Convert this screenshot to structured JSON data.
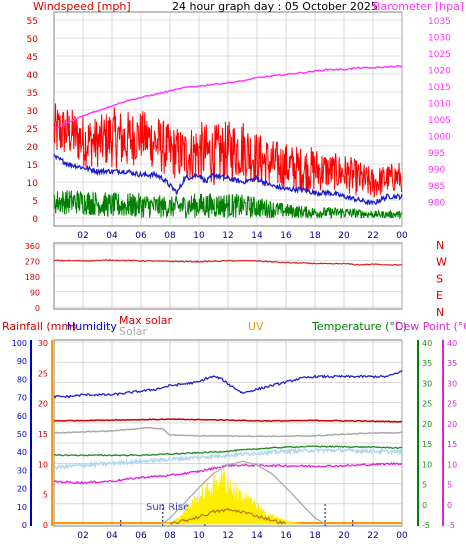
{
  "header": {
    "title": "24 hour graph day : 05 October 2025",
    "left_axis_label": "Windspeed [mph]",
    "right_axis_label": "Barometer [hpa]"
  },
  "bottom_header": {
    "rainfall": "Rainfall (mm)",
    "humidity": "Humidity",
    "max_solar": "Max solar",
    "solar": "Solar",
    "uv": "UV",
    "temperature": "Temperature (°C)",
    "dew_point": "Dew Point (°C)"
  },
  "direction_labels": [
    "N",
    "W",
    "S",
    "E",
    "N"
  ],
  "annotations": {
    "sun_rise": "Sun Rise"
  },
  "colors": {
    "wind_gust": "#ff0000",
    "wind_avg": "#1e1ecc",
    "wind_low": "#008000",
    "barometer": "#ff33ff",
    "direction": "#dd2222",
    "humidity": "#2222cc",
    "max_solar": "#aaaaaa",
    "solar": "#ffee00",
    "uv": "#b87700",
    "temperature": "#228b22",
    "temperature_high": "#b0d8f0",
    "dew_point": "#dd22dd",
    "rain": "#ff9900",
    "axis_left": "#cc0000",
    "axis_right": "#ff33ff",
    "axis_rain": "#0000cc",
    "panel_bg": "#ffffff",
    "grid": "#c0c0c0",
    "frame": "#808080"
  },
  "chart_data": [
    {
      "type": "line",
      "name": "wind_and_pressure",
      "title": "24 hour graph day : 05 October 2025",
      "x_ticks": [
        "02",
        "04",
        "06",
        "08",
        "10",
        "12",
        "14",
        "16",
        "18",
        "20",
        "22",
        "00"
      ],
      "x_range": [
        0,
        24
      ],
      "left_axis": {
        "label": "Windspeed [mph]",
        "range": [
          0,
          55
        ],
        "ticks": [
          "0",
          "5",
          "10",
          "15",
          "20",
          "25",
          "30",
          "35",
          "40",
          "45",
          "50",
          "55"
        ]
      },
      "right_axis": {
        "label": "Barometer [hpa]",
        "range": [
          975,
          1035
        ],
        "ticks": [
          "980",
          "985",
          "990",
          "995",
          "1000",
          "1005",
          "1010",
          "1015",
          "1020",
          "1025",
          "1030",
          "1035"
        ]
      },
      "series": [
        {
          "key": "wind_gust",
          "axis": "left",
          "band": true,
          "x": [
            0,
            1,
            2,
            3,
            4,
            5,
            6,
            7,
            8,
            9,
            10,
            11,
            12,
            13,
            14,
            15,
            16,
            17,
            18,
            19,
            20,
            21,
            22,
            23,
            24
          ],
          "low": [
            16,
            17,
            14,
            14,
            14,
            13,
            16,
            13,
            11,
            10,
            10,
            9,
            10,
            11,
            9,
            8,
            8,
            7,
            7,
            8,
            7,
            6,
            5,
            7,
            7
          ],
          "high": [
            32,
            31,
            29,
            28,
            31,
            30,
            30,
            29,
            26,
            25,
            27,
            26,
            27,
            28,
            24,
            22,
            21,
            20,
            20,
            18,
            18,
            16,
            14,
            15,
            16
          ]
        },
        {
          "key": "wind_avg",
          "axis": "left",
          "x": [
            0,
            1,
            2,
            3,
            4,
            5,
            6,
            7,
            7.5,
            8,
            8.5,
            9,
            10,
            10.5,
            11,
            12,
            13,
            14,
            15,
            16,
            17,
            18,
            19,
            20,
            21,
            22,
            23,
            24
          ],
          "y": [
            17,
            15,
            14,
            13,
            13,
            13,
            12,
            12,
            11,
            9,
            7,
            11,
            12,
            10,
            12,
            11,
            10,
            11,
            9,
            8,
            8,
            7,
            7,
            6,
            5,
            4,
            6,
            6
          ]
        },
        {
          "key": "wind_low",
          "axis": "left",
          "band": true,
          "x": [
            0,
            2,
            4,
            6,
            8,
            10,
            12,
            14,
            16,
            18,
            20,
            22,
            24
          ],
          "low": [
            1,
            1,
            0,
            0,
            0,
            0,
            0,
            0,
            0,
            0,
            0,
            0,
            0
          ],
          "high": [
            8,
            8,
            7,
            7,
            6,
            7,
            7,
            6,
            4,
            3,
            3,
            2,
            2
          ]
        },
        {
          "key": "barometer",
          "axis": "right",
          "x": [
            0,
            1,
            2,
            3,
            4,
            5,
            6,
            7,
            8,
            9,
            10,
            11,
            12,
            13,
            14,
            15,
            16,
            17,
            18,
            19,
            20,
            21,
            22,
            23,
            24
          ],
          "y": [
            1002,
            1004,
            1006,
            1007.5,
            1009,
            1010.5,
            1011.5,
            1012.5,
            1013.5,
            1014.5,
            1015,
            1015.5,
            1016,
            1016.5,
            1017.5,
            1018,
            1018.5,
            1019,
            1019.5,
            1020,
            1020,
            1020.5,
            1020.5,
            1020.8,
            1021
          ]
        }
      ]
    },
    {
      "type": "line",
      "name": "wind_direction",
      "x_range": [
        0,
        24
      ],
      "left_axis": {
        "range": [
          0,
          360
        ],
        "ticks": [
          "0",
          "90",
          "180",
          "270",
          "360"
        ]
      },
      "right_labels": [
        "N",
        "W",
        "S",
        "E",
        "N"
      ],
      "series": [
        {
          "key": "direction",
          "x": [
            0,
            2,
            4,
            6,
            8,
            10,
            12,
            14,
            15,
            16,
            17,
            18,
            19,
            20,
            21,
            22,
            23,
            24
          ],
          "y": [
            270,
            268,
            272,
            268,
            265,
            263,
            268,
            268,
            262,
            258,
            255,
            253,
            250,
            252,
            245,
            248,
            246,
            244
          ]
        }
      ]
    },
    {
      "type": "line",
      "name": "rain_humidity_solar_temperature",
      "x_ticks": [
        "02",
        "04",
        "06",
        "08",
        "10",
        "12",
        "14",
        "16",
        "18",
        "20",
        "22",
        "00"
      ],
      "x_range": [
        0,
        24
      ],
      "rain_axis": {
        "label": "Rainfall (mm)",
        "range": [
          0,
          30
        ],
        "ticks": [
          "0",
          "5",
          "10",
          "15",
          "20",
          "25",
          "30"
        ]
      },
      "humidity_axis": {
        "label": "Humidity",
        "range": [
          0,
          100
        ],
        "ticks": [
          "0",
          "10",
          "20",
          "30",
          "40",
          "50",
          "60",
          "70",
          "80",
          "90",
          "100"
        ]
      },
      "temperature_axis": {
        "label": "Temperature (°C)",
        "range": [
          -5,
          40
        ],
        "ticks": [
          "-5",
          "0",
          "5",
          "10",
          "15",
          "20",
          "25",
          "30",
          "35",
          "40"
        ]
      },
      "dew_point_axis": {
        "label": "Dew Point (°C)",
        "range": [
          -5,
          40
        ],
        "ticks": [
          "-5",
          "0",
          "5",
          "10",
          "15",
          "20",
          "25",
          "30",
          "35",
          "40"
        ]
      },
      "sun_rise_hour": 7.5,
      "sun_set_hour": 18.7,
      "series": [
        {
          "key": "humidity",
          "axis": "humidity",
          "x": [
            0,
            1,
            2,
            3,
            4,
            5,
            6,
            7,
            8,
            9,
            10,
            10.5,
            11,
            11.5,
            12,
            13,
            14,
            15,
            16,
            17,
            18,
            19,
            20,
            21,
            22,
            23,
            24
          ],
          "y": [
            70,
            70,
            71,
            71,
            71,
            72,
            73,
            74,
            76,
            77,
            78,
            80,
            81,
            80,
            77,
            72,
            74,
            76,
            78,
            80,
            81,
            81,
            81,
            81,
            81,
            81,
            84
          ]
        },
        {
          "key": "temperature_alt",
          "axis": "temperature",
          "x": [
            0,
            2,
            4,
            6,
            8,
            10,
            12,
            14,
            16,
            18,
            20,
            22,
            24
          ],
          "y": [
            20.5,
            20.6,
            20.7,
            20.8,
            20.9,
            20.8,
            20.7,
            20.5,
            20.5,
            20.6,
            20.5,
            20.4,
            20.3
          ]
        },
        {
          "key": "max_solar_line",
          "axis": "temperature",
          "x": [
            0,
            2,
            4,
            5,
            6,
            6.5,
            7,
            7.5,
            8,
            10,
            12,
            14,
            16,
            18,
            20,
            22,
            24
          ],
          "y": [
            17.5,
            17.8,
            18,
            18.3,
            18.7,
            18.8,
            18.6,
            18.5,
            17,
            16.8,
            16.8,
            16.7,
            16.7,
            16.8,
            17.2,
            17.5,
            17.6
          ]
        },
        {
          "key": "temperature",
          "axis": "temperature",
          "x": [
            0,
            2,
            4,
            6,
            8,
            10,
            12,
            14,
            16,
            18,
            20,
            22,
            24
          ],
          "y": [
            12,
            12,
            12,
            12,
            12.3,
            12.6,
            13,
            13.6,
            14,
            14.2,
            14.1,
            14,
            13.8
          ]
        },
        {
          "key": "temperature_high",
          "axis": "temperature",
          "x": [
            0,
            2,
            4,
            6,
            8,
            10,
            12,
            14,
            16,
            18,
            20,
            22,
            24
          ],
          "y": [
            9,
            9.5,
            10,
            10.5,
            11,
            11.5,
            12,
            12.5,
            13,
            13.2,
            13.2,
            13,
            12.8
          ]
        },
        {
          "key": "dew_point",
          "axis": "dew_point",
          "x": [
            0,
            2,
            4,
            6,
            8,
            10,
            12,
            14,
            16,
            18,
            20,
            22,
            24
          ],
          "y": [
            5.5,
            5.2,
            5.6,
            6.5,
            7,
            8,
            9.5,
            9.5,
            9.4,
            9.3,
            9.4,
            9.7,
            10
          ]
        },
        {
          "key": "max_solar",
          "axis": "temperature",
          "curve": true,
          "x": [
            7.5,
            8,
            9,
            10,
            11,
            12,
            13,
            14,
            15,
            16,
            17,
            18,
            18.7
          ],
          "y": [
            -5,
            -3.5,
            0.2,
            4,
            7.5,
            9.6,
            10.5,
            9.6,
            7.5,
            4,
            0.2,
            -3.5,
            -5
          ]
        },
        {
          "key": "solar",
          "axis": "temperature",
          "fill": true,
          "x": [
            7.5,
            8,
            8.5,
            9,
            9.5,
            10,
            10.5,
            11,
            11.5,
            12,
            12.5,
            13,
            13.5,
            14,
            14.5,
            15,
            15.5,
            16,
            16.5,
            17
          ],
          "y": [
            -5,
            -4.5,
            -3.5,
            -1.5,
            0.5,
            2.5,
            4,
            6,
            8,
            7,
            4,
            3,
            1.5,
            0,
            -2,
            -2.5,
            -3.5,
            -4,
            -4.5,
            -5
          ]
        },
        {
          "key": "uv",
          "axis": "temperature",
          "x": [
            8,
            9,
            10,
            11,
            12,
            13,
            14,
            15,
            16
          ],
          "y": [
            -5,
            -4.2,
            -3.2,
            -2,
            -1.5,
            -2,
            -3,
            -4,
            -5
          ]
        }
      ]
    }
  ]
}
